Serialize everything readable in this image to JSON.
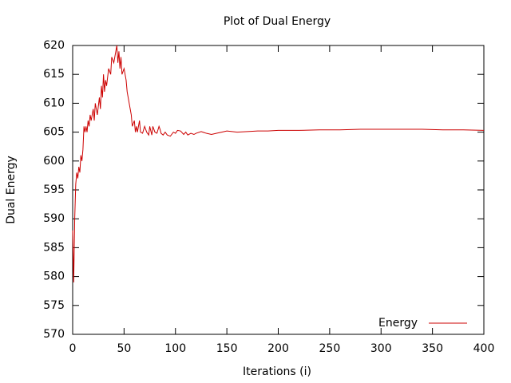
{
  "chart_data": {
    "type": "line",
    "title": "Plot of Dual Energy",
    "x_label": "Iterations (i)",
    "y_label": "Dual Energy",
    "xlim": [
      0,
      400
    ],
    "ylim": [
      570,
      620
    ],
    "xticks": [
      0,
      50,
      100,
      150,
      200,
      250,
      300,
      350,
      400
    ],
    "yticks": [
      570,
      575,
      580,
      585,
      590,
      595,
      600,
      605,
      610,
      615,
      620
    ],
    "legend": "bottom right",
    "series": [
      {
        "name": "Energy",
        "color": "#cc0000",
        "x": [
          0,
          1,
          2,
          3,
          4,
          5,
          6,
          7,
          8,
          9,
          10,
          11,
          12,
          13,
          14,
          15,
          16,
          17,
          18,
          20,
          21,
          22,
          24,
          26,
          27,
          28,
          29,
          30,
          31,
          32,
          33,
          35,
          37,
          38,
          40,
          42,
          43,
          44,
          45,
          46,
          47,
          48,
          50,
          52,
          53,
          55,
          57,
          58,
          60,
          61,
          62,
          63,
          65,
          66,
          68,
          70,
          72,
          74,
          75,
          77,
          78,
          80,
          82,
          84,
          85,
          86,
          88,
          90,
          92,
          95,
          98,
          100,
          102,
          105,
          108,
          110,
          112,
          115,
          118,
          120,
          125,
          130,
          135,
          140,
          145,
          150,
          160,
          170,
          180,
          190,
          200,
          220,
          240,
          260,
          280,
          300,
          320,
          340,
          360,
          380,
          400
        ],
        "values": [
          588,
          579,
          590,
          596,
          598,
          597,
          599,
          598,
          601,
          600,
          602,
          606,
          605,
          606,
          605,
          607,
          606,
          608,
          607,
          609,
          607,
          610,
          608,
          611,
          609,
          613,
          611,
          615,
          612,
          614,
          613,
          616,
          615,
          618,
          617,
          619,
          620,
          617,
          619,
          616,
          618,
          615,
          616,
          614,
          612,
          610,
          608,
          606,
          607,
          605,
          606,
          605,
          607,
          605,
          604.8,
          606,
          605,
          604.5,
          606,
          604.5,
          606,
          605,
          604.8,
          606,
          605.5,
          604.8,
          604.5,
          605,
          604.5,
          604.3,
          605,
          604.8,
          605.3,
          605.2,
          604.6,
          605,
          604.5,
          604.8,
          604.6,
          604.8,
          605.1,
          604.8,
          604.6,
          604.8,
          605,
          605.2,
          605,
          605.1,
          605.2,
          605.2,
          605.3,
          605.3,
          605.4,
          605.4,
          605.5,
          605.5,
          605.5,
          605.5,
          605.4,
          605.4,
          605.3
        ]
      }
    ]
  }
}
